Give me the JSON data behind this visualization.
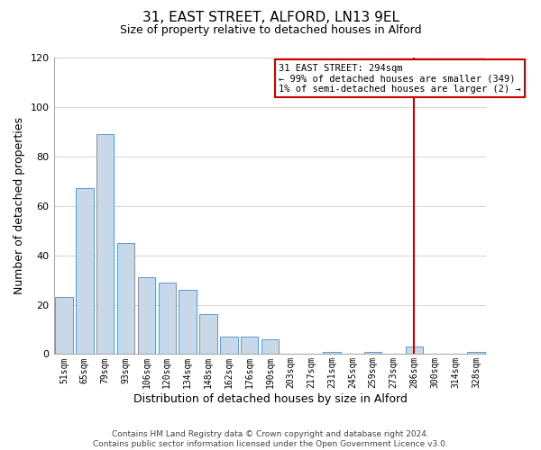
{
  "title": "31, EAST STREET, ALFORD, LN13 9EL",
  "subtitle": "Size of property relative to detached houses in Alford",
  "xlabel": "Distribution of detached houses by size in Alford",
  "ylabel": "Number of detached properties",
  "bar_color": "#c8d8e8",
  "bar_edge_color": "#5b9bd5",
  "categories": [
    "51sqm",
    "65sqm",
    "79sqm",
    "93sqm",
    "106sqm",
    "120sqm",
    "134sqm",
    "148sqm",
    "162sqm",
    "176sqm",
    "190sqm",
    "203sqm",
    "217sqm",
    "231sqm",
    "245sqm",
    "259sqm",
    "273sqm",
    "286sqm",
    "300sqm",
    "314sqm",
    "328sqm"
  ],
  "values": [
    23,
    67,
    89,
    45,
    31,
    29,
    26,
    16,
    7,
    7,
    6,
    0,
    0,
    1,
    0,
    1,
    0,
    3,
    0,
    0,
    1
  ],
  "ylim": [
    0,
    120
  ],
  "yticks": [
    0,
    20,
    40,
    60,
    80,
    100,
    120
  ],
  "vline_index": 17,
  "vline_color": "#cc0000",
  "annotation_title": "31 EAST STREET: 294sqm",
  "annotation_line1": "← 99% of detached houses are smaller (349)",
  "annotation_line2": "1% of semi-detached houses are larger (2) →",
  "annotation_box_color": "#cc0000",
  "footer_line1": "Contains HM Land Registry data © Crown copyright and database right 2024.",
  "footer_line2": "Contains public sector information licensed under the Open Government Licence v3.0.",
  "background_color": "#ffffff",
  "grid_color": "#d0d0d0"
}
